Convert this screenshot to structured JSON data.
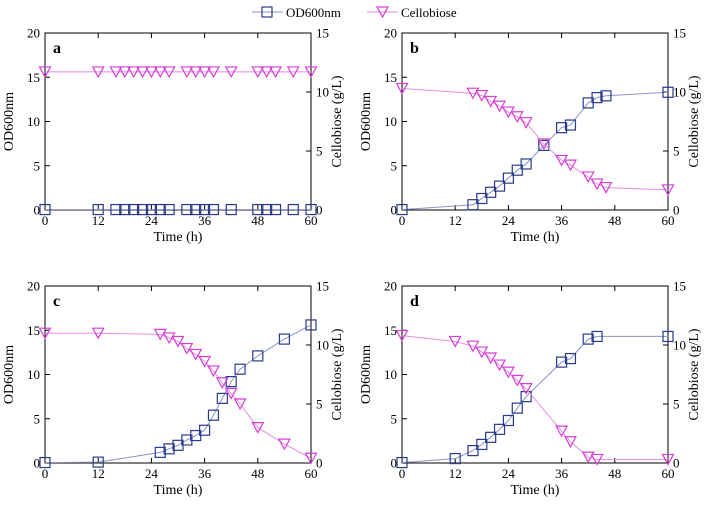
{
  "legend": {
    "od_label": "OD600nm",
    "cb_label": "Cellobiose"
  },
  "colors": {
    "od": "#2b3a8c",
    "cb": "#d63fd6",
    "od_line": "#8a93c8",
    "cb_line": "#e48ee4"
  },
  "chart_data": [
    {
      "type": "line",
      "panel": "a",
      "xlabel": "Time (h)",
      "ylabel_left": "OD600nm",
      "ylabel_right": "Cellobiose (g/L)",
      "xlim": [
        0,
        60
      ],
      "xticks": [
        0,
        12,
        24,
        36,
        48,
        60
      ],
      "ylim_left": [
        0,
        20
      ],
      "yticks_left": [
        0,
        5,
        10,
        15,
        20
      ],
      "ylim_right": [
        0,
        15
      ],
      "yticks_right": [
        0,
        5,
        10,
        15
      ],
      "series": [
        {
          "name": "OD600nm",
          "axis": "left",
          "marker": "square",
          "x": [
            0,
            12,
            16,
            18,
            20,
            22,
            24,
            26,
            28,
            32,
            34,
            36,
            38,
            42,
            48,
            50,
            52,
            56,
            60
          ],
          "y": [
            0.05,
            0.05,
            0.05,
            0.05,
            0.05,
            0.05,
            0.05,
            0.05,
            0.05,
            0.05,
            0.05,
            0.05,
            0.05,
            0.05,
            0.05,
            0.05,
            0.05,
            0.05,
            0.05
          ]
        },
        {
          "name": "Cellobiose",
          "axis": "right",
          "marker": "triangle-down",
          "x": [
            0,
            12,
            16,
            18,
            20,
            22,
            24,
            26,
            28,
            32,
            34,
            36,
            38,
            42,
            48,
            50,
            52,
            56,
            60
          ],
          "y": [
            11.7,
            11.7,
            11.7,
            11.7,
            11.7,
            11.7,
            11.7,
            11.7,
            11.7,
            11.7,
            11.7,
            11.7,
            11.7,
            11.7,
            11.7,
            11.7,
            11.7,
            11.7,
            11.7
          ]
        }
      ]
    },
    {
      "type": "line",
      "panel": "b",
      "xlabel": "Time (h)",
      "ylabel_left": "OD600nm",
      "ylabel_right": "Cellobiose (g/L)",
      "xlim": [
        0,
        60
      ],
      "xticks": [
        0,
        12,
        24,
        36,
        48,
        60
      ],
      "ylim_left": [
        0,
        20
      ],
      "yticks_left": [
        0,
        5,
        10,
        15,
        20
      ],
      "ylim_right": [
        0,
        15
      ],
      "yticks_right": [
        0,
        5,
        10,
        15
      ],
      "series": [
        {
          "name": "OD600nm",
          "axis": "left",
          "marker": "square",
          "x": [
            0,
            16,
            18,
            20,
            22,
            24,
            26,
            28,
            32,
            36,
            38,
            42,
            44,
            46,
            60
          ],
          "y": [
            0.05,
            0.6,
            1.3,
            2.0,
            2.7,
            3.6,
            4.5,
            5.2,
            7.3,
            9.3,
            9.6,
            12.1,
            12.7,
            12.9,
            13.3
          ]
        },
        {
          "name": "Cellobiose",
          "axis": "right",
          "marker": "triangle-down",
          "x": [
            0,
            16,
            18,
            20,
            22,
            24,
            26,
            28,
            32,
            36,
            38,
            42,
            44,
            46,
            60
          ],
          "y": [
            10.3,
            9.9,
            9.7,
            9.2,
            8.8,
            8.3,
            7.9,
            7.4,
            5.6,
            4.2,
            3.8,
            2.8,
            2.2,
            1.9,
            1.7
          ]
        }
      ]
    },
    {
      "type": "line",
      "panel": "c",
      "xlabel": "Time (h)",
      "ylabel_left": "OD600nm",
      "ylabel_right": "Cellobiose (g/L)",
      "xlim": [
        0,
        60
      ],
      "xticks": [
        0,
        12,
        24,
        36,
        48,
        60
      ],
      "ylim_left": [
        0,
        20
      ],
      "yticks_left": [
        0,
        5,
        10,
        15,
        20
      ],
      "ylim_right": [
        0,
        15
      ],
      "yticks_right": [
        0,
        5,
        10,
        15
      ],
      "series": [
        {
          "name": "OD600nm",
          "axis": "left",
          "marker": "square",
          "x": [
            0,
            12,
            26,
            28,
            30,
            32,
            34,
            36,
            38,
            40,
            42,
            44,
            48,
            54,
            60
          ],
          "y": [
            0.05,
            0.1,
            1.2,
            1.6,
            2.0,
            2.6,
            3.1,
            3.7,
            5.4,
            7.3,
            9.2,
            10.6,
            12.1,
            14.0,
            15.6
          ]
        },
        {
          "name": "Cellobiose",
          "axis": "right",
          "marker": "triangle-down",
          "x": [
            0,
            12,
            26,
            28,
            30,
            32,
            34,
            36,
            38,
            40,
            42,
            44,
            48,
            54,
            60
          ],
          "y": [
            11.0,
            11.0,
            10.9,
            10.6,
            10.3,
            9.7,
            9.2,
            8.6,
            7.8,
            6.8,
            5.9,
            5.0,
            3.0,
            1.6,
            0.4
          ]
        }
      ]
    },
    {
      "type": "line",
      "panel": "d",
      "xlabel": "Time (h)",
      "ylabel_left": "OD600nm",
      "ylabel_right": "Cellobiose (g/L)",
      "xlim": [
        0,
        60
      ],
      "xticks": [
        0,
        12,
        24,
        36,
        48,
        60
      ],
      "ylim_left": [
        0,
        20
      ],
      "yticks_left": [
        0,
        5,
        10,
        15,
        20
      ],
      "ylim_right": [
        0,
        15
      ],
      "yticks_right": [
        0,
        5,
        10,
        15
      ],
      "series": [
        {
          "name": "OD600nm",
          "axis": "left",
          "marker": "square",
          "x": [
            0,
            12,
            16,
            18,
            20,
            22,
            24,
            26,
            28,
            36,
            38,
            42,
            44,
            60
          ],
          "y": [
            0.05,
            0.5,
            1.4,
            2.1,
            2.9,
            3.8,
            4.8,
            6.2,
            7.5,
            11.4,
            11.8,
            14.0,
            14.3,
            14.3
          ]
        },
        {
          "name": "Cellobiose",
          "axis": "right",
          "marker": "triangle-down",
          "x": [
            0,
            12,
            16,
            18,
            20,
            22,
            24,
            26,
            28,
            36,
            38,
            42,
            44,
            60
          ],
          "y": [
            10.8,
            10.3,
            9.9,
            9.4,
            8.9,
            8.3,
            7.7,
            7.0,
            6.3,
            2.7,
            1.8,
            0.5,
            0.3,
            0.3
          ]
        }
      ]
    }
  ]
}
